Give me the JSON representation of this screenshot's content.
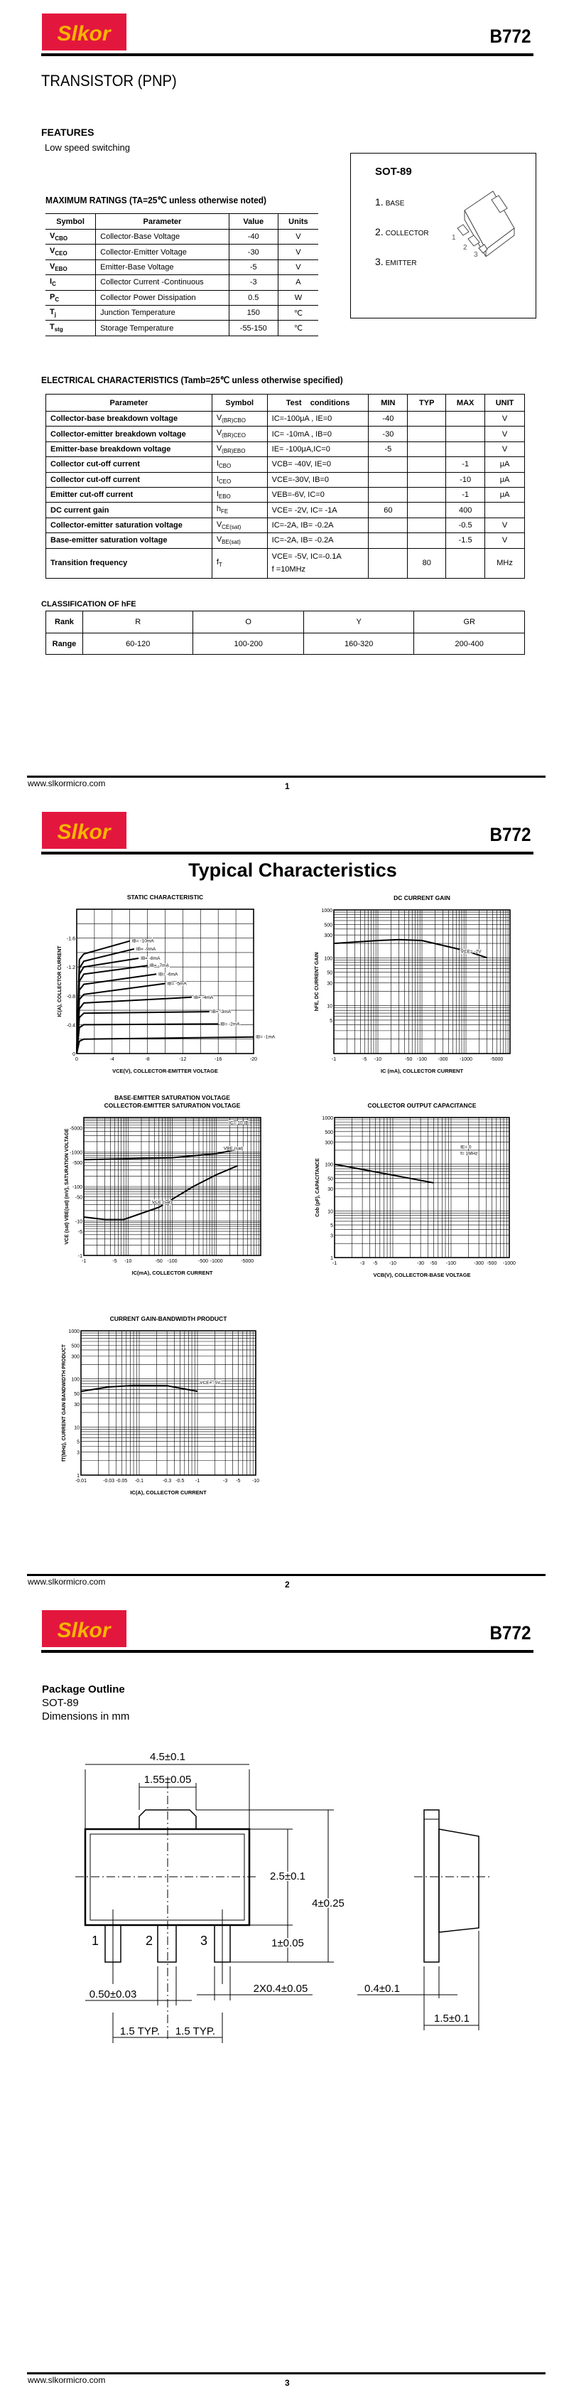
{
  "header": {
    "brand": "Slkor",
    "part_number": "B772",
    "brand_color": "#e3173e",
    "brand_text_color": "#f7b500"
  },
  "footer": {
    "url": "www.slkormicro.com",
    "pages": [
      "1",
      "2",
      "3"
    ]
  },
  "page1": {
    "title": "TRANSISTOR (PNP)",
    "features_heading": "FEATURES",
    "features": [
      "Low speed switching"
    ],
    "package_box": {
      "title": "SOT-89",
      "pins": [
        {
          "num": "1.",
          "name": "BASE"
        },
        {
          "num": "2.",
          "name": "COLLECTOR"
        },
        {
          "num": "3.",
          "name": "EMITTER"
        }
      ],
      "pin_marks": [
        "1",
        "2",
        "3"
      ]
    },
    "max_ratings": {
      "title": "MAXIMUM RATINGS (TA=25℃ unless otherwise noted)",
      "headers": [
        "Symbol",
        "Parameter",
        "Value",
        "Units"
      ],
      "rows": [
        {
          "sym": "V",
          "sub": "CBO",
          "param": "Collector-Base Voltage",
          "value": "-40",
          "unit": "V"
        },
        {
          "sym": "V",
          "sub": "CEO",
          "param": "Collector-Emitter Voltage",
          "value": "-30",
          "unit": "V"
        },
        {
          "sym": "V",
          "sub": "EBO",
          "param": "Emitter-Base Voltage",
          "value": "-5",
          "unit": "V"
        },
        {
          "sym": "I",
          "sub": "C",
          "param": "Collector Current -Continuous",
          "value": "-3",
          "unit": "A"
        },
        {
          "sym": "P",
          "sub": "C",
          "param": "Collector Power Dissipation",
          "value": "0.5",
          "unit": "W"
        },
        {
          "sym": "T",
          "sub": "j",
          "param": "Junction Temperature",
          "value": "150",
          "unit": "℃"
        },
        {
          "sym": "T",
          "sub": "stg",
          "param": "Storage Temperature",
          "value": "-55-150",
          "unit": "℃"
        }
      ]
    },
    "electrical": {
      "title": "ELECTRICAL CHARACTERISTICS (Tamb=25℃ unless otherwise specified)",
      "headers": [
        "Parameter",
        "Symbol",
        "Test    conditions",
        "MIN",
        "TYP",
        "MAX",
        "UNIT"
      ],
      "rows": [
        {
          "param": "Collector-base breakdown voltage",
          "sym": "V",
          "sub": "(BR)CBO",
          "cond": "IC=-100μA , IE=0",
          "cond2": "",
          "min": "-40",
          "typ": "",
          "max": "",
          "unit": "V"
        },
        {
          "param": "Collector-emitter breakdown voltage",
          "sym": "V",
          "sub": "(BR)CEO",
          "cond": "IC= -10mA , IB=0",
          "cond2": "",
          "min": "-30",
          "typ": "",
          "max": "",
          "unit": "V"
        },
        {
          "param": "Emitter-base breakdown voltage",
          "sym": "V",
          "sub": "(BR)EBO",
          "cond": "IE= -100μA,IC=0",
          "cond2": "",
          "min": "-5",
          "typ": "",
          "max": "",
          "unit": "V"
        },
        {
          "param": "Collector cut-off current",
          "sym": "I",
          "sub": "CBO",
          "cond": "VCB= -40V, IE=0",
          "cond2": "",
          "min": "",
          "typ": "",
          "max": "-1",
          "unit": "μA"
        },
        {
          "param": "Collector cut-off current",
          "sym": "I",
          "sub": "CEO",
          "cond": "VCE=-30V, IB=0",
          "cond2": "",
          "min": "",
          "typ": "",
          "max": "-10",
          "unit": "μA"
        },
        {
          "param": "Emitter cut-off current",
          "sym": "I",
          "sub": "EBO",
          "cond": "VEB=-6V, IC=0",
          "cond2": "",
          "min": "",
          "typ": "",
          "max": "-1",
          "unit": "μA"
        },
        {
          "param": "DC current gain",
          "sym": "h",
          "sub": "FE",
          "cond": "VCE= -2V, IC= -1A",
          "cond2": "",
          "min": "60",
          "typ": "",
          "max": "400",
          "unit": ""
        },
        {
          "param": "Collector-emitter saturation voltage",
          "sym": "V",
          "sub": "CE(sat)",
          "cond": "IC=-2A, IB= -0.2A",
          "cond2": "",
          "min": "",
          "typ": "",
          "max": "-0.5",
          "unit": "V"
        },
        {
          "param": "Base-emitter saturation voltage",
          "sym": "V",
          "sub": "BE(sat)",
          "cond": "IC=-2A, IB= -0.2A",
          "cond2": "",
          "min": "",
          "typ": "",
          "max": "-1.5",
          "unit": "V"
        },
        {
          "param": "Transition frequency",
          "sym": "f",
          "sub": "T",
          "cond": "VCE= -5V, IC=-0.1A",
          "cond2": "f =10MHz",
          "min": "",
          "typ": "80",
          "max": "",
          "unit": "MHz"
        }
      ]
    },
    "classification": {
      "title": "CLASSIFICATION OF hFE",
      "rank_label": "Rank",
      "range_label": "Range",
      "ranks": [
        "R",
        "O",
        "Y",
        "GR"
      ],
      "ranges": [
        "60-120",
        "100-200",
        "160-320",
        "200-400"
      ]
    }
  },
  "page2": {
    "title": "Typical Characteristics"
  },
  "chart_data": [
    {
      "type": "line",
      "title": [
        "STATIC CHARACTERISTIC"
      ],
      "xlabel": "VCE(V), COLLECTOR-EMITTER VOLTAGE",
      "ylabel": "IC(A), COLLECTOR CURRENT",
      "xscale": "linear",
      "yscale": "linear",
      "xlim": [
        0,
        -20
      ],
      "ylim": [
        0,
        -2.0
      ],
      "xticks": [
        0,
        -4,
        -8,
        -12,
        -16,
        -20
      ],
      "yticks": [
        0,
        -0.4,
        -0.8,
        -1.2,
        -1.6
      ],
      "grid": true,
      "series": [
        {
          "name": "IB= -1mA",
          "points": [
            [
              0,
              0
            ],
            [
              -0.3,
              -0.17
            ],
            [
              -0.8,
              -0.2
            ],
            [
              -20,
              -0.23
            ]
          ]
        },
        {
          "name": "IB= -2mA",
          "points": [
            [
              0,
              0
            ],
            [
              -0.3,
              -0.36
            ],
            [
              -0.8,
              -0.4
            ],
            [
              -16,
              -0.41
            ]
          ]
        },
        {
          "name": "IB= -3mA",
          "points": [
            [
              0,
              0
            ],
            [
              -0.3,
              -0.5
            ],
            [
              -0.8,
              -0.56
            ],
            [
              -15,
              -0.58
            ]
          ]
        },
        {
          "name": "IB= -4mA",
          "points": [
            [
              0,
              0
            ],
            [
              -0.3,
              -0.62
            ],
            [
              -0.8,
              -0.7
            ],
            [
              -13,
              -0.78
            ]
          ]
        },
        {
          "name": "IB= -5mA",
          "points": [
            [
              0,
              0
            ],
            [
              -0.3,
              -0.75
            ],
            [
              -0.8,
              -0.82
            ],
            [
              -10,
              -0.97
            ]
          ]
        },
        {
          "name": "IB= -6mA",
          "points": [
            [
              0,
              0
            ],
            [
              -0.3,
              -0.88
            ],
            [
              -0.8,
              -0.96
            ],
            [
              -9,
              -1.1
            ]
          ]
        },
        {
          "name": "IB= -7mA",
          "points": [
            [
              0,
              0
            ],
            [
              -0.3,
              -1.0
            ],
            [
              -0.8,
              -1.1
            ],
            [
              -8,
              -1.22
            ]
          ]
        },
        {
          "name": "IB= -8mA",
          "points": [
            [
              0,
              0
            ],
            [
              -0.3,
              -1.1
            ],
            [
              -0.8,
              -1.2
            ],
            [
              -7,
              -1.32
            ]
          ]
        },
        {
          "name": "IB= -9mA",
          "points": [
            [
              0,
              0
            ],
            [
              -0.3,
              -1.18
            ],
            [
              -0.8,
              -1.28
            ],
            [
              -6.5,
              -1.45
            ]
          ]
        },
        {
          "name": "IB= -10mA",
          "points": [
            [
              0,
              0
            ],
            [
              -0.3,
              -1.3
            ],
            [
              -0.8,
              -1.38
            ],
            [
              -6,
              -1.56
            ]
          ]
        }
      ]
    },
    {
      "type": "line",
      "title": [
        "DC CURRENT GAIN"
      ],
      "xlabel": "IC (mA), COLLECTOR CURRENT",
      "ylabel": "hFE, DC CURRENT GAIN",
      "xscale": "log",
      "yscale": "log",
      "xlim": [
        -1,
        -10000
      ],
      "ylim": [
        1,
        1000
      ],
      "xticks": [
        -1,
        -5,
        -10,
        -50,
        -100,
        -300,
        -1000,
        -5000
      ],
      "yticks": [
        5,
        10,
        30,
        50,
        100,
        300,
        500,
        1000
      ],
      "grid": true,
      "annotations": [
        "VCE= -2V"
      ],
      "series": [
        {
          "points": [
            [
              -1,
              200
            ],
            [
              -10,
              230
            ],
            [
              -30,
              240
            ],
            [
              -100,
              230
            ],
            [
              -1000,
              140
            ],
            [
              -3000,
              100
            ]
          ]
        }
      ]
    },
    {
      "type": "line",
      "title": [
        "BASE-EMITTER SATURATION VOLTAGE",
        "COLLECTOR-EMITTER SATURATION VOLTAGE"
      ],
      "xlabel": "IC(mA), COLLECTOR CURRENT",
      "ylabel": "VCE (sat) VBE(sat) (mV), SATURATION VOLTAGE",
      "xscale": "log",
      "yscale": "log",
      "xlim": [
        -1,
        -10000
      ],
      "ylim": [
        -1,
        -10000
      ],
      "xticks": [
        -1,
        -5,
        -10,
        -50,
        -100,
        -500,
        -1000,
        -5000
      ],
      "yticks": [
        -1,
        -5,
        -10,
        -50,
        -100,
        -500,
        -1000,
        -5000
      ],
      "grid": true,
      "annotations": [
        "IC= 10·IB"
      ],
      "series": [
        {
          "name": "VBE (sat)",
          "points": [
            [
              -1,
              -600
            ],
            [
              -100,
              -680
            ],
            [
              -1000,
              -900
            ],
            [
              -3000,
              -1200
            ]
          ]
        },
        {
          "name": "VCE (sat)",
          "points": [
            [
              -1,
              -13
            ],
            [
              -3,
              -11
            ],
            [
              -8,
              -11
            ],
            [
              -50,
              -25
            ],
            [
              -300,
              -100
            ],
            [
              -1000,
              -220
            ],
            [
              -3000,
              -400
            ]
          ]
        }
      ]
    },
    {
      "type": "line",
      "title": [
        "COLLECTOR OUTPUT CAPACITANCE"
      ],
      "xlabel": "VCB(V), COLLECTOR-BASE VOLTAGE",
      "ylabel": "Cob (pF), CAPACITANCE",
      "xscale": "log",
      "yscale": "log",
      "xlim": [
        -1,
        -1000
      ],
      "ylim": [
        1,
        1000
      ],
      "xticks": [
        -1,
        -3,
        -5,
        -10,
        -30,
        -50,
        -100,
        -300,
        -500,
        -1000
      ],
      "yticks": [
        1,
        3,
        5,
        10,
        30,
        50,
        100,
        300,
        500,
        1000
      ],
      "grid": true,
      "annotations": [
        "IE= 0",
        "f= 1MHz"
      ],
      "series": [
        {
          "points": [
            [
              -1,
              100
            ],
            [
              -50,
              40
            ]
          ]
        }
      ]
    },
    {
      "type": "line",
      "title": [
        "CURRENT GAIN-BANDWIDTH PRODUCT"
      ],
      "xlabel": "IC(A), COLLECTOR CURRENT",
      "ylabel": "fT(MHz), CURRENT GAIN BANDWIDTH PRODUCT",
      "xscale": "log",
      "yscale": "log",
      "xlim": [
        -0.01,
        -10
      ],
      "ylim": [
        1,
        1000
      ],
      "xticks": [
        -0.01,
        -0.03,
        -0.05,
        -0.1,
        -0.3,
        -0.5,
        -1,
        -3,
        -5,
        -10
      ],
      "yticks": [
        1,
        3,
        5,
        10,
        30,
        50,
        100,
        300,
        500,
        1000
      ],
      "grid": true,
      "annotations": [
        "VCE= -5V"
      ],
      "series": [
        {
          "points": [
            [
              -0.01,
              55
            ],
            [
              -0.03,
              68
            ],
            [
              -0.08,
              73
            ],
            [
              -0.3,
              72
            ],
            [
              -1,
              55
            ]
          ]
        }
      ]
    }
  ],
  "page3": {
    "heading": "Package Outline",
    "package": "SOT-89",
    "units": "Dimensions in mm",
    "dims": {
      "width": "4.5±0.1",
      "tab_width": "1.55±0.05",
      "body_height": "2.5±0.1",
      "total_height": "4±0.25",
      "lead_length": "1±0.05",
      "center_lead": "0.50±0.03",
      "side_leads": "2X0.4±0.05",
      "thickness_lead": "0.4±0.1",
      "thickness": "1.5±0.1",
      "pitch1": "1.5 TYP.",
      "pitch2": "1.5 TYP."
    },
    "pin_labels": [
      "1",
      "2",
      "3"
    ]
  }
}
